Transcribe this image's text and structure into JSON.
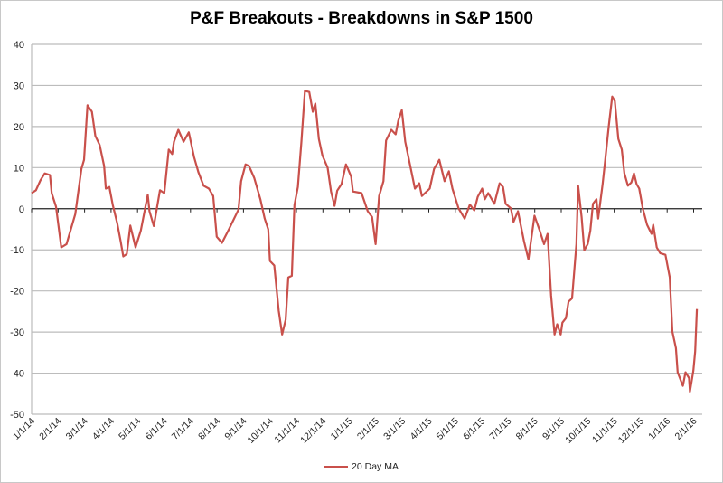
{
  "chart_data": {
    "type": "line",
    "title": "P&F Breakouts - Breakdowns in S&P 1500",
    "xlabel": "",
    "ylabel": "",
    "x_units": "days since 1/1/14",
    "ylim": [
      -50,
      40
    ],
    "yticks": [
      40,
      30,
      20,
      10,
      0,
      -10,
      -20,
      -30,
      -40,
      -50
    ],
    "xtick_labels": [
      "1/1/14",
      "2/1/14",
      "3/1/14",
      "4/1/14",
      "5/1/14",
      "6/1/14",
      "7/1/14",
      "8/1/14",
      "9/1/14",
      "10/1/14",
      "11/1/14",
      "12/1/14",
      "1/1/15",
      "2/1/15",
      "3/1/15",
      "4/1/15",
      "5/1/15",
      "6/1/15",
      "7/1/15",
      "8/1/15",
      "9/1/15",
      "10/1/15",
      "11/1/15",
      "12/1/15",
      "1/1/16",
      "2/1/16"
    ],
    "grid": true,
    "legend_position": "bottom",
    "colors": {
      "line": "#c9504b",
      "grid": "#bcbcbc",
      "axis": "#222222"
    },
    "series": [
      {
        "name": "20 Day MA",
        "points": [
          [
            0,
            3.8
          ],
          [
            5,
            4.5
          ],
          [
            10,
            6.9
          ],
          [
            15,
            8.6
          ],
          [
            21,
            8.2
          ],
          [
            23,
            3.8
          ],
          [
            28,
            0.5
          ],
          [
            34,
            -9.4
          ],
          [
            40,
            -8.6
          ],
          [
            50,
            -1.3
          ],
          [
            57,
            9.7
          ],
          [
            60,
            11.9
          ],
          [
            64,
            25.2
          ],
          [
            69,
            23.6
          ],
          [
            73,
            17.7
          ],
          [
            78,
            15.5
          ],
          [
            83,
            10.4
          ],
          [
            85,
            4.9
          ],
          [
            89,
            5.3
          ],
          [
            93,
            0.9
          ],
          [
            98,
            -3.5
          ],
          [
            102,
            -7.9
          ],
          [
            105,
            -11.6
          ],
          [
            109,
            -11
          ],
          [
            113,
            -4.1
          ],
          [
            119,
            -9.4
          ],
          [
            125,
            -5.3
          ],
          [
            133,
            3.4
          ],
          [
            135,
            -0.6
          ],
          [
            140,
            -4.2
          ],
          [
            147,
            4.5
          ],
          [
            152,
            3.8
          ],
          [
            157,
            14.4
          ],
          [
            161,
            13.3
          ],
          [
            163,
            16.3
          ],
          [
            168,
            19.2
          ],
          [
            174,
            16.3
          ],
          [
            180,
            18.6
          ],
          [
            186,
            12.6
          ],
          [
            191,
            8.9
          ],
          [
            197,
            5.6
          ],
          [
            203,
            4.9
          ],
          [
            208,
            3.1
          ],
          [
            212,
            -6.8
          ],
          [
            218,
            -8.3
          ],
          [
            226,
            -5.0
          ],
          [
            237,
            -0.2
          ],
          [
            240,
            6.7
          ],
          [
            245,
            10.8
          ],
          [
            249,
            10.4
          ],
          [
            255,
            7.5
          ],
          [
            262,
            2.3
          ],
          [
            267,
            -2.4
          ],
          [
            271,
            -5.0
          ],
          [
            273,
            -12.7
          ],
          [
            278,
            -13.8
          ],
          [
            283,
            -24.8
          ],
          [
            287,
            -30.6
          ],
          [
            291,
            -27
          ],
          [
            294,
            -16.7
          ],
          [
            298,
            -16.3
          ],
          [
            301,
            0.9
          ],
          [
            305,
            5.3
          ],
          [
            309,
            16.3
          ],
          [
            313,
            28.7
          ],
          [
            318,
            28.4
          ],
          [
            322,
            23.6
          ],
          [
            325,
            25.6
          ],
          [
            329,
            17
          ],
          [
            333,
            13
          ],
          [
            339,
            10
          ],
          [
            343,
            4.2
          ],
          [
            347,
            0.7
          ],
          [
            350,
            4.4
          ],
          [
            355,
            6
          ],
          [
            360,
            10.8
          ],
          [
            366,
            7.8
          ],
          [
            368,
            4.2
          ],
          [
            378,
            3.8
          ],
          [
            385,
            -0.6
          ],
          [
            390,
            -2
          ],
          [
            394,
            -8.6
          ],
          [
            398,
            3.1
          ],
          [
            403,
            6.7
          ],
          [
            406,
            16.6
          ],
          [
            412,
            19.2
          ],
          [
            417,
            18.1
          ],
          [
            420,
            21.4
          ],
          [
            424,
            24
          ],
          [
            428,
            16.3
          ],
          [
            433,
            11.1
          ],
          [
            439,
            4.9
          ],
          [
            444,
            6.2
          ],
          [
            447,
            3.1
          ],
          [
            456,
            4.9
          ],
          [
            461,
            9.7
          ],
          [
            467,
            11.9
          ],
          [
            473,
            6.7
          ],
          [
            478,
            9.1
          ],
          [
            482,
            4.9
          ],
          [
            489,
            0.1
          ],
          [
            496,
            -2.4
          ],
          [
            502,
            1
          ],
          [
            507,
            -0.4
          ],
          [
            511,
            2.9
          ],
          [
            516,
            4.9
          ],
          [
            519,
            2.3
          ],
          [
            523,
            3.8
          ],
          [
            530,
            1.2
          ],
          [
            536,
            6.2
          ],
          [
            540,
            5.3
          ],
          [
            543,
            1.2
          ],
          [
            549,
            0.1
          ],
          [
            552,
            -3.2
          ],
          [
            557,
            -0.6
          ],
          [
            564,
            -7.9
          ],
          [
            569,
            -12.3
          ],
          [
            576,
            -1.7
          ],
          [
            582,
            -5.3
          ],
          [
            587,
            -8.6
          ],
          [
            591,
            -6.1
          ],
          [
            595,
            -21.1
          ],
          [
            599,
            -30.6
          ],
          [
            602,
            -28.1
          ],
          [
            606,
            -30.6
          ],
          [
            608,
            -27.7
          ],
          [
            612,
            -26.6
          ],
          [
            615,
            -22.6
          ],
          [
            619,
            -21.8
          ],
          [
            624,
            -8.6
          ],
          [
            626,
            5.6
          ],
          [
            630,
            -2.1
          ],
          [
            633,
            -10.1
          ],
          [
            637,
            -8.6
          ],
          [
            640,
            -5.3
          ],
          [
            643,
            1.2
          ],
          [
            647,
            2.3
          ],
          [
            649,
            -2.4
          ],
          [
            654,
            6
          ],
          [
            657,
            11.9
          ],
          [
            661,
            19.9
          ],
          [
            665,
            27.3
          ],
          [
            668,
            26.2
          ],
          [
            672,
            17
          ],
          [
            676,
            14.4
          ],
          [
            679,
            8.6
          ],
          [
            683,
            5.6
          ],
          [
            687,
            6.4
          ],
          [
            690,
            8.6
          ],
          [
            693,
            6
          ],
          [
            696,
            4.9
          ],
          [
            700,
            0.1
          ],
          [
            705,
            -3.9
          ],
          [
            710,
            -6.1
          ],
          [
            712,
            -3.9
          ],
          [
            716,
            -9.4
          ],
          [
            720,
            -10.8
          ],
          [
            726,
            -11.2
          ],
          [
            731,
            -16.7
          ],
          [
            734,
            -29.9
          ],
          [
            738,
            -33.9
          ],
          [
            740,
            -39.8
          ],
          [
            746,
            -43.1
          ],
          [
            749,
            -39.8
          ],
          [
            753,
            -41.2
          ],
          [
            754,
            -44.5
          ],
          [
            758,
            -39.4
          ],
          [
            760,
            -34.7
          ],
          [
            762,
            -24.4
          ]
        ]
      }
    ]
  }
}
